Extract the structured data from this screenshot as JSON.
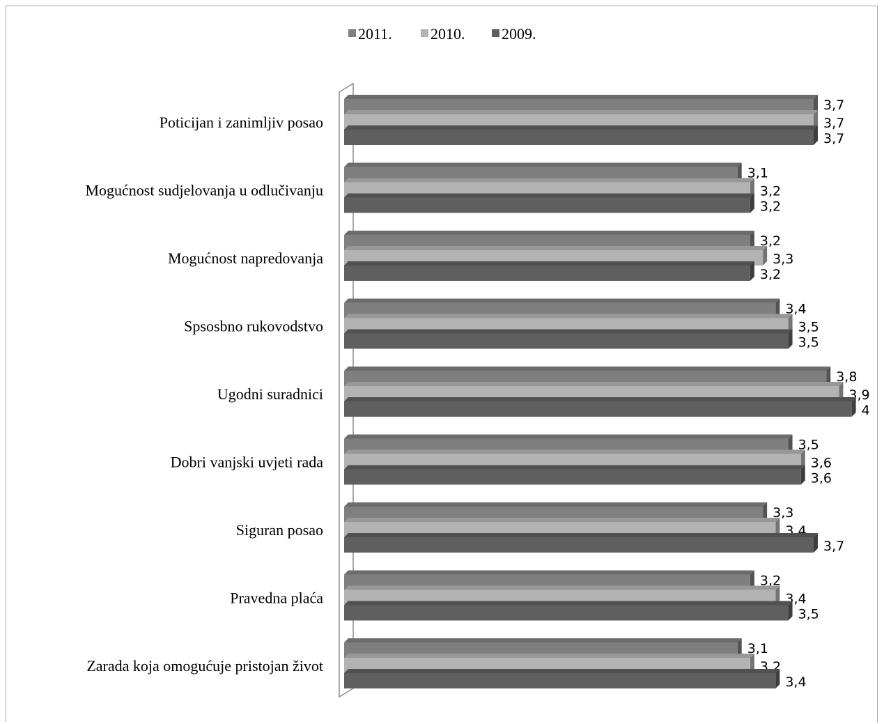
{
  "chart_data": {
    "type": "bar",
    "orientation": "horizontal",
    "legend_position": "top",
    "grid": false,
    "xlim": [
      0,
      4.2
    ],
    "categories": [
      "Poticijan i zanimljiv posao",
      "Mogućnost sudjelovanja u odlučivanju",
      "Mogućnost napredovanja",
      "Spsosbno rukovodstvo",
      "Ugodni suradnici",
      "Dobri vanjski uvjeti rada",
      "Siguran posao",
      "Pravedna plaća",
      "Zarada koja omogućuje pristojan život"
    ],
    "series": [
      {
        "name": "2011.",
        "color": "#7f7f7f",
        "values": [
          3.7,
          3.1,
          3.2,
          3.4,
          3.8,
          3.5,
          3.3,
          3.2,
          3.1
        ],
        "labels": [
          "3,7",
          "3,1",
          "3,2",
          "3,4",
          "3,8",
          "3,5",
          "3,3",
          "3,2",
          "3,1"
        ]
      },
      {
        "name": "2010.",
        "color": "#b3b3b3",
        "values": [
          3.7,
          3.2,
          3.3,
          3.5,
          3.9,
          3.6,
          3.4,
          3.4,
          3.2
        ],
        "labels": [
          "3,7",
          "3,2",
          "3,3",
          "3,5",
          "3,9",
          "3,6",
          "3,4",
          "3,4",
          "3,2"
        ]
      },
      {
        "name": "2009.",
        "color": "#5f5f5f",
        "values": [
          3.7,
          3.2,
          3.2,
          3.5,
          4,
          3.6,
          3.7,
          3.5,
          3.4
        ],
        "labels": [
          "3,7",
          "3,2",
          "3,2",
          "3,5",
          "4",
          "3,6",
          "3,7",
          "3,5",
          "3,4"
        ]
      }
    ]
  }
}
